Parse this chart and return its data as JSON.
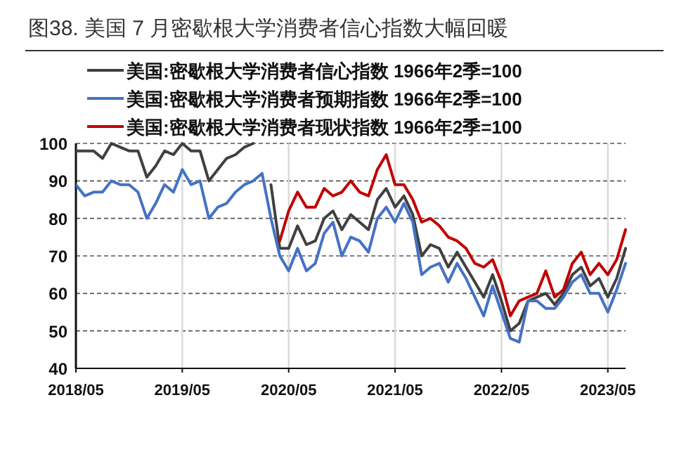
{
  "chart_data": {
    "type": "line",
    "title": "图38. 美国 7 月密歇根大学消费者信心指数大幅回暖",
    "x": [
      "2018-05",
      "2018-06",
      "2018-07",
      "2018-08",
      "2018-09",
      "2018-10",
      "2018-11",
      "2018-12",
      "2019-01",
      "2019-02",
      "2019-03",
      "2019-04",
      "2019-05",
      "2019-06",
      "2019-07",
      "2019-08",
      "2019-09",
      "2019-10",
      "2019-11",
      "2019-12",
      "2020-01",
      "2020-02",
      "2020-03",
      "2020-04",
      "2020-05",
      "2020-06",
      "2020-07",
      "2020-08",
      "2020-09",
      "2020-10",
      "2020-11",
      "2020-12",
      "2021-01",
      "2021-02",
      "2021-03",
      "2021-04",
      "2021-05",
      "2021-06",
      "2021-07",
      "2021-08",
      "2021-09",
      "2021-10",
      "2021-11",
      "2021-12",
      "2022-01",
      "2022-02",
      "2022-03",
      "2022-04",
      "2022-05",
      "2022-06",
      "2022-07",
      "2022-08",
      "2022-09",
      "2022-10",
      "2022-11",
      "2022-12",
      "2023-01",
      "2023-02",
      "2023-03",
      "2023-04",
      "2023-05",
      "2023-06",
      "2023-07"
    ],
    "series": [
      {
        "name": "美国:密歇根大学消费者信心指数 1966年2季=100",
        "color": "#404040",
        "values": [
          98,
          98,
          98,
          96,
          100,
          99,
          98,
          98,
          91,
          94,
          98,
          97,
          100,
          98,
          98,
          90,
          93,
          96,
          97,
          99,
          100,
          null,
          89,
          72,
          72,
          78,
          73,
          74,
          80,
          82,
          77,
          81,
          79,
          77,
          85,
          88,
          83,
          86,
          81,
          70,
          73,
          72,
          67,
          71,
          67,
          63,
          59,
          65,
          58,
          50,
          52,
          58,
          59,
          60,
          57,
          60,
          65,
          67,
          62,
          64,
          59,
          64,
          72
        ]
      },
      {
        "name": "美国:密歇根大学消费者预期指数 1966年2季=100",
        "color": "#4472c4",
        "values": [
          89,
          86,
          87,
          87,
          90,
          89,
          89,
          87,
          80,
          84,
          89,
          87,
          93,
          89,
          90,
          80,
          83,
          84,
          87,
          89,
          90,
          92,
          80,
          70,
          66,
          72,
          66,
          68,
          76,
          79,
          70,
          75,
          74,
          71,
          80,
          83,
          79,
          84,
          79,
          65,
          67,
          68,
          63,
          68,
          64,
          59,
          54,
          62,
          55,
          48,
          47,
          58,
          58,
          56,
          56,
          59,
          63,
          65,
          60,
          60,
          55,
          61,
          68
        ]
      },
      {
        "name": "美国:密歇根大学消费者现状指数 1966年2季=100",
        "color": "#c00000",
        "values": [
          null,
          null,
          null,
          null,
          null,
          null,
          null,
          null,
          null,
          null,
          null,
          null,
          null,
          null,
          null,
          null,
          null,
          null,
          null,
          null,
          null,
          null,
          null,
          74,
          82,
          87,
          83,
          83,
          88,
          86,
          87,
          90,
          87,
          86,
          93,
          97,
          89,
          89,
          85,
          79,
          80,
          78,
          75,
          74,
          72,
          68,
          67,
          69,
          63,
          54,
          58,
          59,
          60,
          66,
          59,
          61,
          68,
          71,
          65,
          68,
          65,
          69,
          77
        ]
      }
    ],
    "xlim": [
      "2018-05",
      "2023-07"
    ],
    "xticks": [
      {
        "value": "2018-05",
        "label": "2018/05"
      },
      {
        "value": "2019-05",
        "label": "2019/05"
      },
      {
        "value": "2020-05",
        "label": "2020/05"
      },
      {
        "value": "2021-05",
        "label": "2021/05"
      },
      {
        "value": "2022-05",
        "label": "2022/05"
      },
      {
        "value": "2023-05",
        "label": "2023/05"
      }
    ],
    "ylim": [
      40,
      100
    ],
    "yticks": [
      40,
      50,
      60,
      70,
      80,
      90,
      100
    ],
    "grid": true,
    "legend": "top"
  }
}
